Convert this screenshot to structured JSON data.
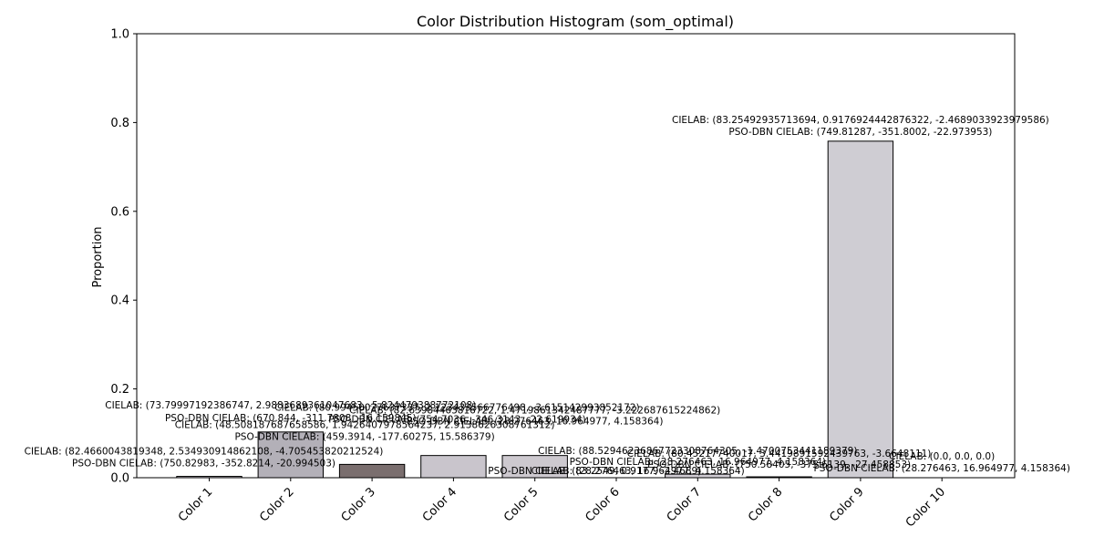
{
  "chart_data": {
    "type": "bar",
    "title": "Color Distribution Histogram (som_optimal)",
    "xlabel": "",
    "ylabel": "Proportion",
    "ylim": [
      0,
      1.0
    ],
    "yticks": [
      "0.0",
      "0.2",
      "0.4",
      "0.6",
      "0.8",
      "1.0"
    ],
    "grid": false,
    "bars": [
      {
        "category": "Color 1",
        "value": 0.003,
        "color": "#cdc8d1",
        "cielab": "CIELAB: (82.4660043819348, 2.534930914862108, -4.705453820212524)",
        "pso": "PSO-DBN CIELAB: (750.82983, -352.8214, -20.994503)"
      },
      {
        "category": "Color 2",
        "value": 0.103,
        "color": "#b3b0b8",
        "cielab": "CIELAB: (73.79997192386747, 2.9883689361047683, -5.824479388772108)",
        "pso": "PSO-DBN CIELAB: (670.844, -311.7808, -16.159845)"
      },
      {
        "category": "Color 3",
        "value": 0.03,
        "color": "#7a6e6e",
        "cielab": "CIELAB: (48.508187687658586, 1.9426407978564237, 2.9138626308761312)",
        "pso": "PSO-DBN CIELAB: (459.3914, -177.60275, 15.586379)"
      },
      {
        "category": "Color 4",
        "value": 0.05,
        "color": "#c9c5cc",
        "cielab": "CIELAB: (80.99450027637337, 2.123433566776498, -3.615142993852172)",
        "pso": "PSO-DBN CIELAB: (754.7036, -346.3143, -22.619934)"
      },
      {
        "category": "Color 5",
        "value": 0.05,
        "color": "#cdc9cf",
        "cielab": "CIELAB: (82.63984463816722, 1.4719861342487777, -3.222687615224862)",
        "pso": "PSO-DBN CIELAB: (28.276463, 16.964977, 4.158364)"
      },
      {
        "category": "Color 6",
        "value": 0.0,
        "color": "#cfcbd2",
        "cielab": "CIELAB: (83.2549, 0.9177, -2.4689)",
        "pso": "PSO-DBN CIELAB: (28.276463, 16.964977, 4.158364)"
      },
      {
        "category": "Color 7",
        "value": 0.008,
        "color": "#d0ccd3",
        "cielab": "CIELAB: (88.52946236867723308764305, -1.4700753441189379)",
        "pso": "PSO-DBN CIELAB: (28.276463, 16.964977, 4.158364)"
      },
      {
        "category": "Color 8",
        "value": 0.002,
        "color": "#cdc9d0",
        "cielab": "CIELAB: (80.45217740017, 3.4419891592439763, -3.6648111)",
        "pso": "PSO-DBN CIELAB: (750.58405, -375.6139, -27.458853)"
      },
      {
        "category": "Color 9",
        "value": 0.758,
        "color": "#cfcdd3",
        "cielab": "CIELAB: (83.25492935713694, 0.9176924442876322, -2.4689033923979586)",
        "pso": "PSO-DBN CIELAB: (749.81287, -351.8002, -22.973953)"
      },
      {
        "category": "Color 10",
        "value": 0.0,
        "color": "#ffffff",
        "cielab": "CIELAB: (0.0, 0.0, 0.0)",
        "pso": "PSO-DBN CIELAB: (28.276463, 16.964977, 4.158364)"
      }
    ]
  }
}
